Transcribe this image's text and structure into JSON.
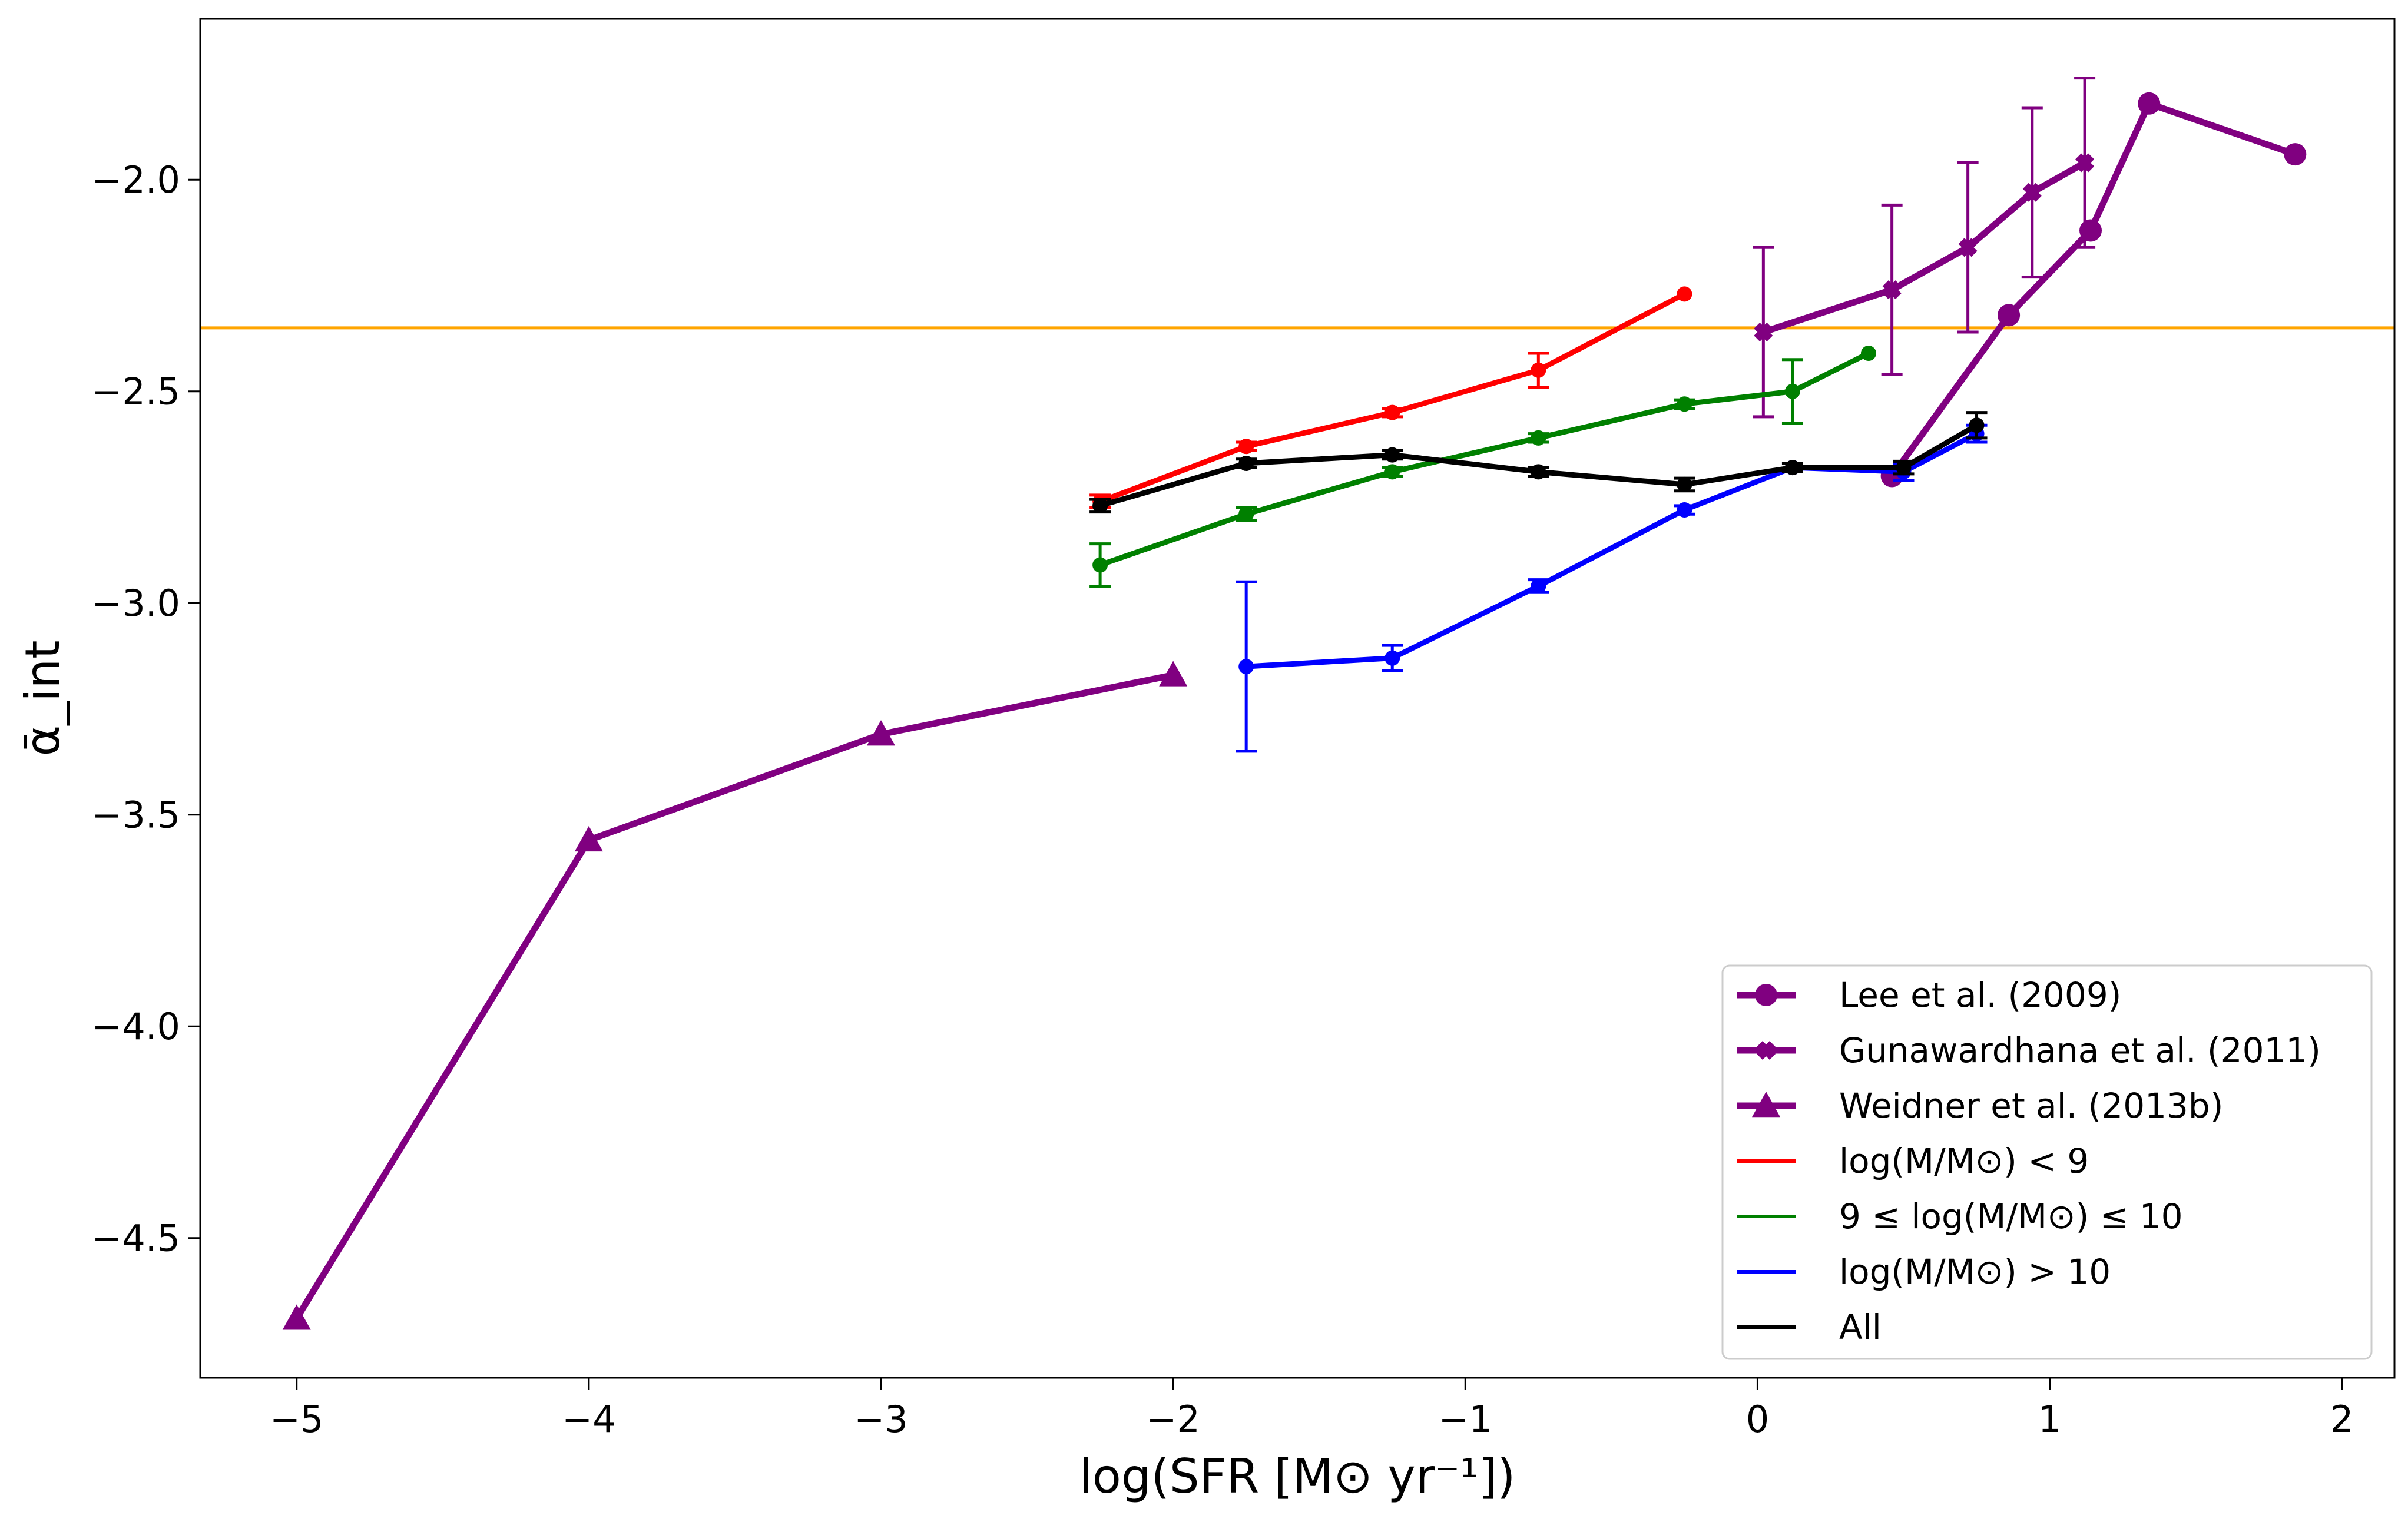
{
  "chart_data": {
    "type": "line",
    "title": "",
    "xlabel": "log(SFR [M⊙ yr⁻¹])",
    "ylabel": "ᾱ_int",
    "xlim": [
      -5.33,
      2.18
    ],
    "ylim": [
      -4.83,
      -1.62
    ],
    "grid": false,
    "legend_location": "lower-right",
    "x_ticks": [
      -5,
      -4,
      -3,
      -2,
      -1,
      0,
      1,
      2
    ],
    "x_tick_labels": [
      "−5",
      "−4",
      "−3",
      "−2",
      "−1",
      "0",
      "1",
      "2"
    ],
    "y_ticks": [
      -2.0,
      -2.5,
      -3.0,
      -3.5,
      -4.0,
      -4.5
    ],
    "y_tick_labels": [
      "−2.0",
      "−2.5",
      "−3.0",
      "−3.5",
      "−4.0",
      "−4.5"
    ],
    "reference_line": {
      "y": -2.35,
      "color": "#FFA500"
    },
    "series": [
      {
        "name": "Lee et al. (2009)",
        "color": "#800080",
        "marker": "circle",
        "line_width": "thick",
        "x": [
          0.46,
          0.86,
          1.14,
          1.34,
          1.84
        ],
        "y": [
          -2.7,
          -2.32,
          -2.12,
          -1.82,
          -1.94
        ],
        "yerr": null
      },
      {
        "name": "Gunawardhana et al. (2011)",
        "color": "#800080",
        "marker": "x",
        "line_width": "thick",
        "x": [
          0.02,
          0.46,
          0.72,
          0.94,
          1.12
        ],
        "y": [
          -2.36,
          -2.26,
          -2.16,
          -2.03,
          -1.96
        ],
        "yerr": [
          0.2,
          0.2,
          0.2,
          0.2,
          0.2
        ]
      },
      {
        "name": "Weidner et al. (2013b)",
        "color": "#800080",
        "marker": "triangle",
        "line_width": "thick",
        "x": [
          -5,
          -4,
          -3,
          -2
        ],
        "y": [
          -4.69,
          -3.56,
          -3.31,
          -3.17
        ],
        "yerr": null
      },
      {
        "name": "log(M/M⊙) < 9",
        "color": "#FF0000",
        "marker": "dot",
        "line_width": "normal",
        "x": [
          -2.25,
          -1.75,
          -1.25,
          -0.75,
          -0.25
        ],
        "y": [
          -2.76,
          -2.63,
          -2.55,
          -2.45,
          -2.27
        ],
        "yerr": [
          0.015,
          0.01,
          0.01,
          0.04,
          0.0
        ]
      },
      {
        "name": "9 ≤ log(M/M⊙) ≤ 10",
        "color": "#008000",
        "marker": "dot",
        "line_width": "normal",
        "x": [
          -2.25,
          -1.75,
          -1.25,
          -0.75,
          -0.25,
          0.12,
          0.38
        ],
        "y": [
          -2.91,
          -2.79,
          -2.69,
          -2.61,
          -2.53,
          -2.5,
          -2.41
        ],
        "yerr": [
          0.05,
          0.015,
          0.01,
          0.01,
          0.01,
          0.075,
          0.0
        ]
      },
      {
        "name": "log(M/M⊙) > 10",
        "color": "#0000FF",
        "marker": "dot",
        "line_width": "normal",
        "x": [
          -1.75,
          -1.25,
          -0.75,
          -0.25,
          0.12,
          0.5,
          0.75
        ],
        "y": [
          -3.15,
          -3.13,
          -2.96,
          -2.78,
          -2.68,
          -2.69,
          -2.6
        ],
        "yerr": [
          0.2,
          0.03,
          0.015,
          0.01,
          0.01,
          0.02,
          0.02
        ]
      },
      {
        "name": "All",
        "color": "#000000",
        "marker": "dot",
        "line_width": "normal",
        "x": [
          -2.25,
          -1.75,
          -1.25,
          -0.75,
          -0.25,
          0.12,
          0.5,
          0.75
        ],
        "y": [
          -2.77,
          -2.67,
          -2.65,
          -2.69,
          -2.72,
          -2.68,
          -2.68,
          -2.58
        ],
        "yerr": [
          0.015,
          0.01,
          0.01,
          0.01,
          0.015,
          0.01,
          0.015,
          0.03
        ]
      }
    ]
  }
}
